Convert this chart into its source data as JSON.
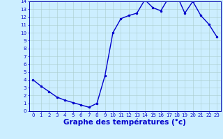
{
  "hours": [
    0,
    1,
    2,
    3,
    4,
    5,
    6,
    7,
    8,
    9,
    10,
    11,
    12,
    13,
    14,
    15,
    16,
    17,
    18,
    19,
    20,
    21,
    22,
    23
  ],
  "temps": [
    4.0,
    3.2,
    2.5,
    1.8,
    1.4,
    1.1,
    0.8,
    0.5,
    1.0,
    4.5,
    10.0,
    11.8,
    12.2,
    12.5,
    14.2,
    13.2,
    12.8,
    14.5,
    14.8,
    12.5,
    14.0,
    12.2,
    11.1,
    9.5
  ],
  "line_color": "#0000cc",
  "marker": ".",
  "marker_size": 3,
  "bg_color": "#cceeff",
  "grid_color": "#aacccc",
  "xlabel": "Graphe des températures (°c)",
  "xlim": [
    -0.5,
    23.5
  ],
  "ylim": [
    0,
    14
  ],
  "yticks": [
    0,
    1,
    2,
    3,
    4,
    5,
    6,
    7,
    8,
    9,
    10,
    11,
    12,
    13,
    14
  ],
  "xticks": [
    0,
    1,
    2,
    3,
    4,
    5,
    6,
    7,
    8,
    9,
    10,
    11,
    12,
    13,
    14,
    15,
    16,
    17,
    18,
    19,
    20,
    21,
    22,
    23
  ],
  "tick_label_color": "#0000cc",
  "tick_fontsize": 5.0,
  "axis_color": "#0000aa",
  "xlabel_fontsize": 7.5,
  "xlabel_fontweight": "bold",
  "linewidth": 1.0
}
